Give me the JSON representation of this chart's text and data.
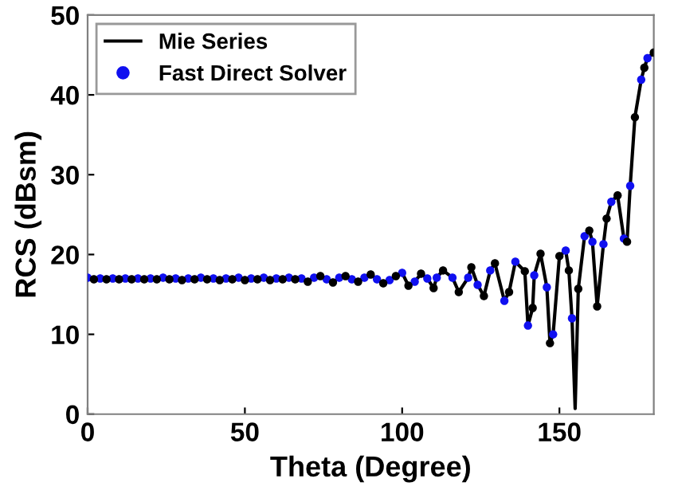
{
  "chart_data": {
    "type": "line",
    "xlabel": "Theta (Degree)",
    "ylabel": "RCS (dBsm)",
    "xlim": [
      0,
      180
    ],
    "xticks": [
      0,
      50,
      100,
      150
    ],
    "ylim": [
      0,
      50
    ],
    "yticks": [
      0,
      10,
      20,
      30,
      40,
      50
    ],
    "grid": false,
    "legend": "top left",
    "series": [
      {
        "name": "Mie Series",
        "color": "#000000",
        "marker": "none",
        "line_style": "solid",
        "x": [
          0,
          2,
          4,
          6,
          8,
          10,
          12,
          14,
          16,
          18,
          20,
          22,
          24,
          26,
          28,
          30,
          32,
          34,
          36,
          38,
          40,
          42,
          44,
          46,
          48,
          50,
          52,
          54,
          56,
          58,
          60,
          62,
          64,
          66,
          68,
          70,
          72,
          74,
          76,
          78,
          80,
          82,
          84,
          86,
          88,
          90,
          92,
          94,
          96,
          98,
          100,
          102,
          104,
          106,
          108,
          110,
          111,
          113,
          116,
          118,
          121,
          122,
          124,
          126,
          128,
          129.5,
          132.5,
          134,
          136,
          139,
          140,
          141.5,
          142,
          144,
          146,
          147,
          148,
          150,
          152,
          153,
          154,
          155,
          156,
          158,
          159.5,
          160.5,
          162,
          164,
          165,
          166.5,
          168.5,
          170.5,
          171.5,
          172.5,
          174,
          176,
          177,
          178,
          180
        ],
        "values": [
          17.1,
          16.9,
          17.0,
          16.9,
          17.0,
          16.9,
          17.0,
          16.9,
          17.0,
          16.9,
          17.0,
          16.9,
          17.1,
          16.9,
          17.0,
          16.8,
          17.0,
          16.9,
          17.1,
          16.9,
          17.0,
          16.8,
          17.0,
          16.9,
          17.1,
          16.8,
          17.0,
          16.9,
          17.1,
          16.8,
          17.0,
          16.9,
          17.1,
          16.9,
          17.0,
          16.6,
          17.1,
          17.3,
          16.9,
          16.5,
          17.1,
          17.3,
          16.9,
          16.6,
          17.1,
          17.5,
          16.9,
          16.4,
          16.8,
          17.3,
          17.7,
          16.1,
          16.6,
          17.6,
          17.0,
          15.8,
          17.1,
          18.0,
          17.1,
          15.3,
          17.1,
          18.4,
          16.2,
          14.8,
          18.0,
          18.9,
          14.2,
          15.3,
          19.1,
          17.9,
          11.1,
          13.3,
          17.4,
          20.1,
          15.9,
          8.9,
          10.0,
          19.8,
          20.5,
          18.0,
          12.0,
          0.7,
          15.7,
          22.3,
          23.0,
          21.6,
          13.5,
          21.3,
          24.5,
          26.6,
          27.4,
          22.0,
          21.6,
          28.6,
          37.2,
          41.9,
          43.4,
          44.6,
          45.3
        ]
      },
      {
        "name": "Fast Direct Solver",
        "type": "scatter",
        "color": "#1010f0",
        "marker": "circle",
        "x": [
          0,
          4,
          8,
          12,
          16,
          20,
          24,
          28,
          32,
          36,
          40,
          44,
          48,
          52,
          56,
          60,
          64,
          68,
          72,
          76,
          80,
          84,
          88,
          92,
          96,
          100,
          104,
          108,
          111,
          116,
          121,
          124,
          128,
          132.5,
          136,
          140,
          142,
          146,
          148,
          152,
          154,
          158,
          160.5,
          164,
          166.5,
          170.5,
          172.5,
          176,
          178
        ],
        "values": [
          17.1,
          17.0,
          17.0,
          17.0,
          17.0,
          17.0,
          17.1,
          17.0,
          17.0,
          17.1,
          17.0,
          17.0,
          17.1,
          17.0,
          17.1,
          17.0,
          17.1,
          17.0,
          17.1,
          16.9,
          17.1,
          16.9,
          17.1,
          16.9,
          16.8,
          17.7,
          16.6,
          17.0,
          17.1,
          17.1,
          17.1,
          16.2,
          18.0,
          14.2,
          19.1,
          11.1,
          17.4,
          15.9,
          10.0,
          20.5,
          12.0,
          22.3,
          21.6,
          21.3,
          26.6,
          22.0,
          28.6,
          41.9,
          44.6
        ]
      },
      {
        "type": "scatter",
        "color": "#000000",
        "marker": "circle",
        "x": [
          2,
          6,
          10,
          14,
          18,
          22,
          26,
          30,
          34,
          38,
          42,
          46,
          50,
          54,
          58,
          62,
          66,
          70,
          74,
          78,
          82,
          86,
          90,
          94,
          98,
          102,
          106,
          110,
          113,
          118,
          122,
          126,
          129.5,
          134,
          139,
          141.5,
          144,
          147,
          150,
          153,
          156,
          159.5,
          162,
          165,
          168.5,
          171.5,
          174,
          177,
          180
        ],
        "values": [
          16.9,
          16.9,
          16.9,
          16.9,
          16.9,
          16.9,
          16.9,
          16.8,
          16.9,
          16.9,
          16.8,
          16.9,
          16.8,
          16.9,
          16.8,
          16.9,
          16.9,
          16.6,
          17.3,
          16.5,
          17.3,
          16.6,
          17.5,
          16.4,
          17.3,
          16.1,
          17.6,
          15.8,
          18.0,
          15.3,
          18.4,
          14.8,
          18.9,
          15.3,
          17.9,
          13.3,
          20.1,
          8.9,
          19.8,
          18.0,
          15.7,
          23.0,
          13.5,
          24.5,
          27.4,
          21.6,
          37.2,
          43.4,
          45.3
        ]
      }
    ]
  }
}
